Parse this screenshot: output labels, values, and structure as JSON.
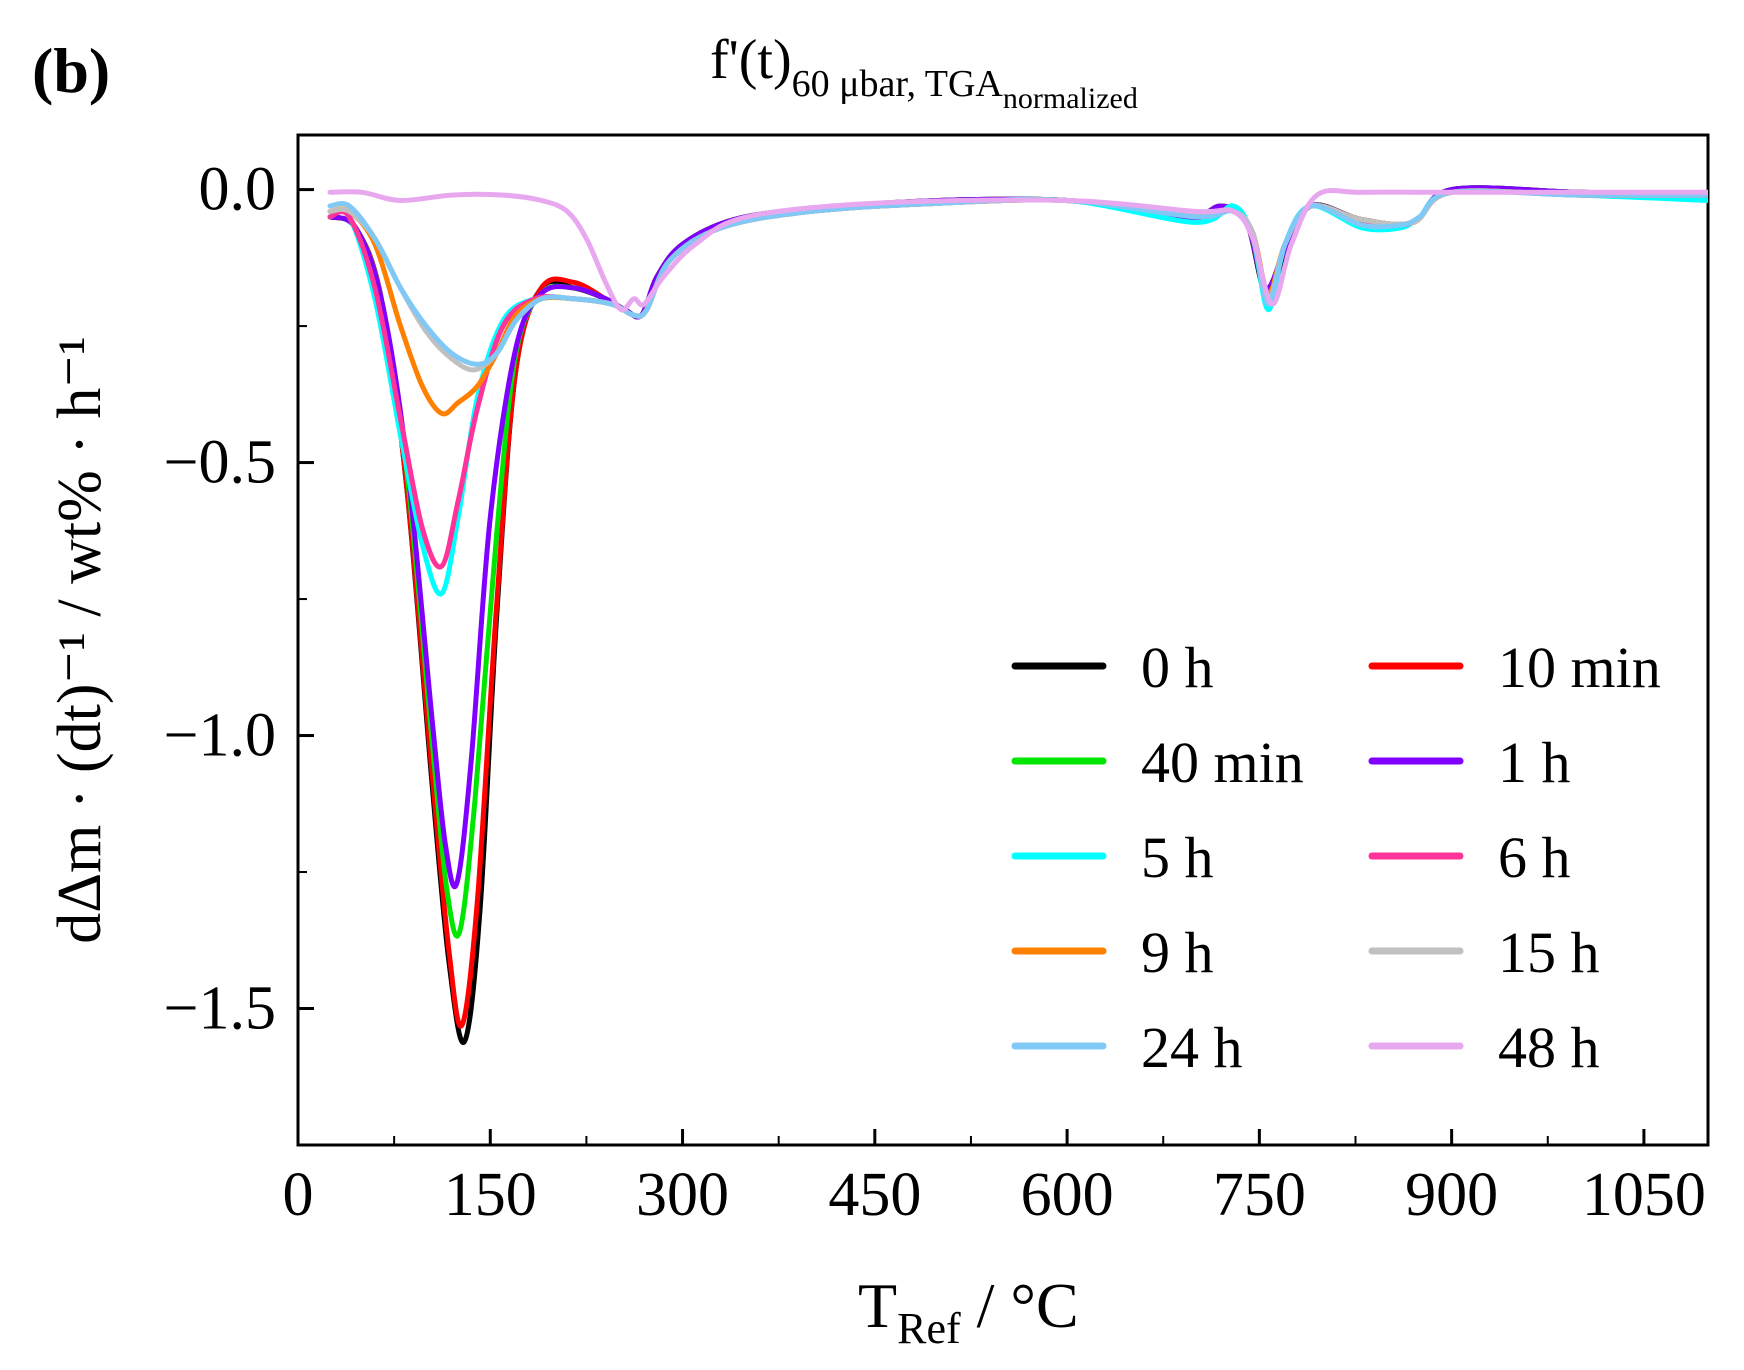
{
  "panel_label": "(b)",
  "title": {
    "main": "f'(t)",
    "sub1": "60 μbar, TGA",
    "sub2": "normalized"
  },
  "chart_data": {
    "type": "line",
    "title": "f'(t) 60 μbar, TGA normalized",
    "xlabel": {
      "main": "T",
      "sub": "Ref",
      "rest": " / °C"
    },
    "ylabel": "dΔm · (dt)⁻¹ / wt% · h⁻¹",
    "xlim": [
      0,
      1100
    ],
    "ylim": [
      -1.75,
      0.1
    ],
    "xticks": [
      0,
      150,
      300,
      450,
      600,
      750,
      900,
      1050
    ],
    "xtick_labels": [
      "0",
      "150",
      "300",
      "450",
      "600",
      "750",
      "900",
      "1050"
    ],
    "yticks": [
      0.0,
      -0.5,
      -1.0,
      -1.5
    ],
    "ytick_labels": [
      "0.0",
      "−0.5",
      "−1.0",
      "−1.5"
    ],
    "grid": false,
    "legend_position": "lower-right",
    "series": [
      {
        "name": "0 h",
        "color": "#000000",
        "x": [
          25,
          45,
          65,
          85,
          105,
          118,
          130,
          142,
          155,
          170,
          190,
          215,
          240,
          255,
          268,
          280,
          300,
          340,
          400,
          500,
          600,
          680,
          700,
          720,
          740,
          755,
          770,
          790,
          830,
          870,
          900,
          1000,
          1100
        ],
        "y": [
          -0.05,
          -0.07,
          -0.2,
          -0.55,
          -1.1,
          -1.42,
          -1.56,
          -1.32,
          -0.78,
          -0.33,
          -0.18,
          -0.18,
          -0.2,
          -0.22,
          -0.23,
          -0.16,
          -0.1,
          -0.055,
          -0.035,
          -0.02,
          -0.02,
          -0.045,
          -0.055,
          -0.03,
          -0.06,
          -0.19,
          -0.12,
          -0.03,
          -0.055,
          -0.06,
          0,
          -0.005,
          -0.01
        ]
      },
      {
        "name": "10 min",
        "color": "#ff0000",
        "x": [
          25,
          45,
          65,
          85,
          105,
          118,
          128,
          140,
          155,
          170,
          190,
          215,
          240,
          255,
          268,
          280,
          300,
          340,
          400,
          500,
          600,
          680,
          700,
          720,
          740,
          755,
          770,
          790,
          830,
          870,
          900,
          1000,
          1100
        ],
        "y": [
          -0.05,
          -0.07,
          -0.2,
          -0.55,
          -1.08,
          -1.4,
          -1.53,
          -1.3,
          -0.76,
          -0.33,
          -0.18,
          -0.17,
          -0.2,
          -0.22,
          -0.23,
          -0.16,
          -0.1,
          -0.055,
          -0.035,
          -0.02,
          -0.02,
          -0.045,
          -0.055,
          -0.03,
          -0.06,
          -0.18,
          -0.11,
          -0.03,
          -0.055,
          -0.06,
          0,
          -0.005,
          -0.01
        ]
      },
      {
        "name": "40 min",
        "color": "#00e600",
        "x": [
          25,
          45,
          65,
          85,
          105,
          116,
          126,
          138,
          155,
          170,
          190,
          215,
          240,
          255,
          268,
          280,
          300,
          340,
          400,
          500,
          600,
          680,
          700,
          720,
          740,
          755,
          770,
          790,
          830,
          870,
          900,
          1000,
          1100
        ],
        "y": [
          -0.05,
          -0.07,
          -0.2,
          -0.52,
          -1.02,
          -1.28,
          -1.36,
          -1.12,
          -0.63,
          -0.3,
          -0.19,
          -0.18,
          -0.2,
          -0.22,
          -0.23,
          -0.16,
          -0.1,
          -0.055,
          -0.035,
          -0.02,
          -0.02,
          -0.045,
          -0.055,
          -0.03,
          -0.06,
          -0.18,
          -0.11,
          -0.03,
          -0.055,
          -0.06,
          0,
          -0.005,
          -0.01
        ]
      },
      {
        "name": "1 h",
        "color": "#7f00ff",
        "x": [
          25,
          45,
          65,
          85,
          105,
          115,
          124,
          135,
          150,
          170,
          190,
          215,
          240,
          255,
          268,
          280,
          300,
          340,
          400,
          500,
          600,
          680,
          700,
          720,
          740,
          755,
          770,
          790,
          830,
          870,
          900,
          1000,
          1100
        ],
        "y": [
          -0.05,
          -0.07,
          -0.2,
          -0.5,
          -0.98,
          -1.2,
          -1.27,
          -1.05,
          -0.6,
          -0.29,
          -0.19,
          -0.18,
          -0.2,
          -0.22,
          -0.23,
          -0.16,
          -0.1,
          -0.055,
          -0.035,
          -0.02,
          -0.02,
          -0.045,
          -0.055,
          -0.03,
          -0.06,
          -0.18,
          -0.11,
          -0.03,
          -0.055,
          -0.06,
          0,
          -0.005,
          -0.01
        ]
      },
      {
        "name": "5 h",
        "color": "#00ffff",
        "x": [
          25,
          40,
          60,
          80,
          97,
          112,
          125,
          140,
          160,
          185,
          215,
          245,
          262,
          272,
          290,
          330,
          400,
          500,
          600,
          700,
          730,
          745,
          757,
          770,
          790,
          830,
          860,
          875,
          900,
          1000,
          1100
        ],
        "y": [
          -0.05,
          -0.05,
          -0.2,
          -0.45,
          -0.65,
          -0.74,
          -0.6,
          -0.38,
          -0.24,
          -0.2,
          -0.2,
          -0.21,
          -0.23,
          -0.22,
          -0.13,
          -0.07,
          -0.04,
          -0.025,
          -0.02,
          -0.06,
          -0.03,
          -0.09,
          -0.22,
          -0.1,
          -0.03,
          -0.07,
          -0.07,
          -0.05,
          -0.005,
          -0.01,
          -0.02
        ]
      },
      {
        "name": "6 h",
        "color": "#ff3399",
        "x": [
          25,
          40,
          60,
          80,
          97,
          112,
          125,
          140,
          160,
          185,
          215,
          245,
          262,
          272,
          290,
          330,
          400,
          500,
          600,
          700,
          730,
          745,
          757,
          770,
          790,
          830,
          870,
          900,
          1000,
          1100
        ],
        "y": [
          -0.05,
          -0.05,
          -0.18,
          -0.42,
          -0.62,
          -0.69,
          -0.57,
          -0.4,
          -0.25,
          -0.2,
          -0.2,
          -0.21,
          -0.23,
          -0.22,
          -0.13,
          -0.07,
          -0.04,
          -0.025,
          -0.02,
          -0.045,
          -0.04,
          -0.09,
          -0.2,
          -0.1,
          -0.03,
          -0.06,
          -0.06,
          -0.005,
          -0.01,
          -0.01
        ]
      },
      {
        "name": "9 h",
        "color": "#ff8000",
        "x": [
          25,
          40,
          60,
          80,
          97,
          112,
          125,
          140,
          155,
          170,
          190,
          215,
          245,
          262,
          272,
          290,
          330,
          400,
          500,
          600,
          700,
          730,
          745,
          757,
          770,
          790,
          830,
          870,
          900,
          1000,
          1100
        ],
        "y": [
          -0.04,
          -0.04,
          -0.1,
          -0.25,
          -0.36,
          -0.41,
          -0.39,
          -0.36,
          -0.3,
          -0.23,
          -0.2,
          -0.2,
          -0.21,
          -0.23,
          -0.22,
          -0.13,
          -0.07,
          -0.04,
          -0.025,
          -0.02,
          -0.045,
          -0.04,
          -0.08,
          -0.19,
          -0.1,
          -0.03,
          -0.055,
          -0.06,
          -0.005,
          -0.01,
          -0.01
        ]
      },
      {
        "name": "15 h",
        "color": "#c0c0c0",
        "x": [
          25,
          40,
          60,
          80,
          100,
          120,
          138,
          155,
          170,
          190,
          215,
          245,
          262,
          272,
          290,
          330,
          400,
          500,
          600,
          700,
          730,
          745,
          757,
          770,
          790,
          830,
          870,
          900,
          1000,
          1100
        ],
        "y": [
          -0.04,
          -0.04,
          -0.09,
          -0.18,
          -0.26,
          -0.31,
          -0.33,
          -0.3,
          -0.24,
          -0.2,
          -0.2,
          -0.21,
          -0.23,
          -0.22,
          -0.13,
          -0.07,
          -0.04,
          -0.025,
          -0.02,
          -0.045,
          -0.04,
          -0.08,
          -0.2,
          -0.1,
          -0.03,
          -0.055,
          -0.06,
          -0.005,
          -0.01,
          -0.01
        ]
      },
      {
        "name": "24 h",
        "color": "#80c8f5",
        "x": [
          25,
          40,
          60,
          80,
          100,
          120,
          140,
          155,
          170,
          190,
          215,
          245,
          262,
          272,
          290,
          330,
          400,
          500,
          600,
          700,
          730,
          745,
          757,
          770,
          790,
          830,
          860,
          875,
          900,
          1000,
          1100
        ],
        "y": [
          -0.03,
          -0.03,
          -0.09,
          -0.18,
          -0.25,
          -0.3,
          -0.32,
          -0.3,
          -0.24,
          -0.2,
          -0.2,
          -0.21,
          -0.23,
          -0.22,
          -0.13,
          -0.07,
          -0.04,
          -0.025,
          -0.02,
          -0.05,
          -0.04,
          -0.09,
          -0.21,
          -0.1,
          -0.03,
          -0.065,
          -0.065,
          -0.05,
          -0.005,
          -0.01,
          -0.01
        ]
      },
      {
        "name": "48 h",
        "color": "#e8a8f0",
        "x": [
          25,
          50,
          80,
          120,
          160,
          190,
          210,
          225,
          240,
          252,
          262,
          270,
          285,
          310,
          350,
          450,
          600,
          700,
          730,
          745,
          760,
          775,
          795,
          830,
          900,
          1000,
          1100
        ],
        "y": [
          -0.005,
          -0.005,
          -0.02,
          -0.01,
          -0.01,
          -0.02,
          -0.04,
          -0.09,
          -0.17,
          -0.22,
          -0.2,
          -0.21,
          -0.16,
          -0.1,
          -0.05,
          -0.025,
          -0.02,
          -0.04,
          -0.04,
          -0.09,
          -0.21,
          -0.1,
          -0.01,
          -0.005,
          -0.005,
          -0.005,
          -0.005
        ]
      }
    ]
  }
}
